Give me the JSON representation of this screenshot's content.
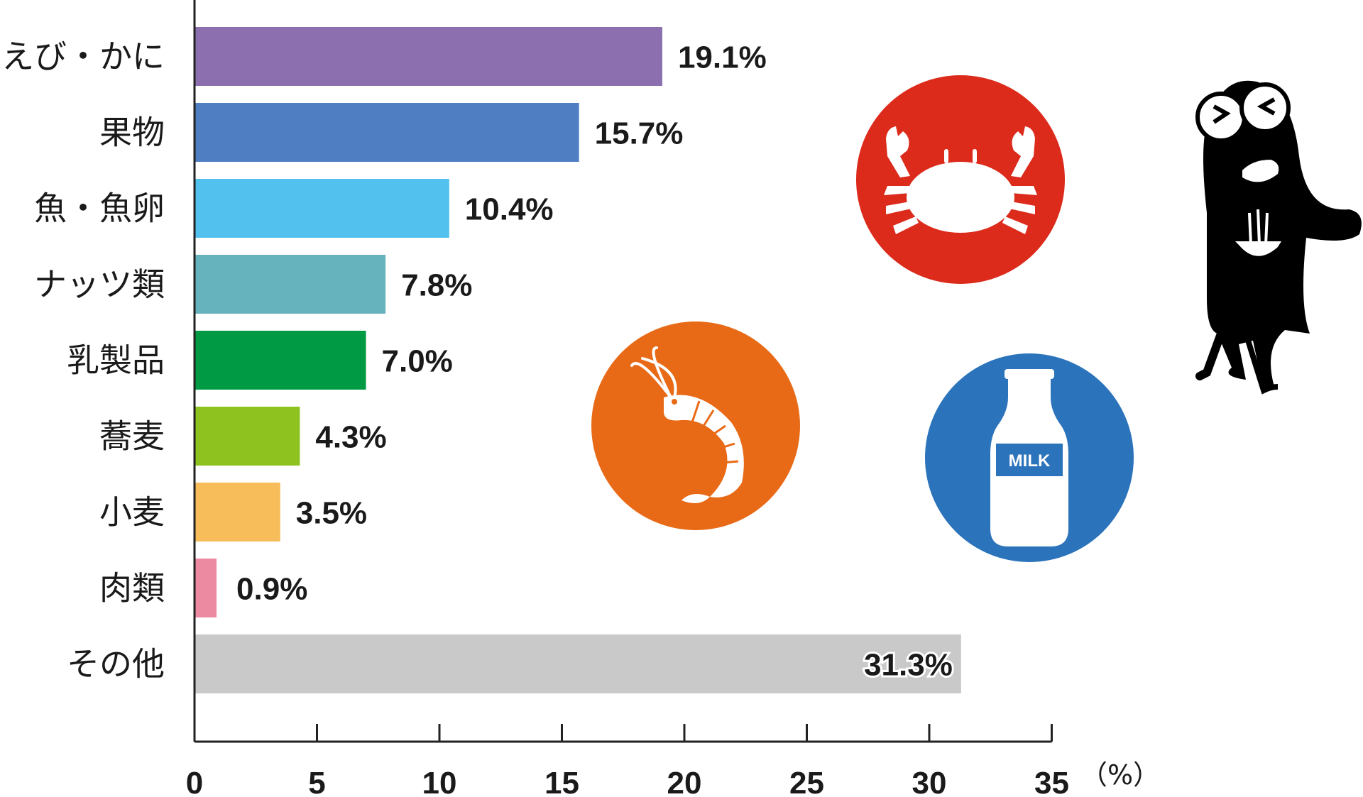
{
  "chart_data": {
    "type": "bar",
    "orientation": "horizontal",
    "categories": [
      "えび・かに",
      "果物",
      "魚・魚卵",
      "ナッツ類",
      "乳製品",
      "蕎麦",
      "小麦",
      "肉類",
      "その他"
    ],
    "values": [
      19.1,
      15.7,
      10.4,
      7.8,
      7.0,
      4.3,
      3.5,
      0.9,
      31.3
    ],
    "value_labels": [
      "19.1%",
      "15.7%",
      "10.4%",
      "7.8%",
      "7.0%",
      "4.3%",
      "3.5%",
      "0.9%",
      "31.3%"
    ],
    "colors": [
      "#8c6fae",
      "#4f7fc2",
      "#52c1ee",
      "#67b3bd",
      "#009a44",
      "#8dc21f",
      "#f6bd5a",
      "#ec8aa2",
      "#c9c9c9"
    ],
    "xlim": [
      0,
      35
    ],
    "x_ticks": [
      0,
      5,
      10,
      15,
      20,
      25,
      30,
      35
    ],
    "x_tick_labels": [
      "0",
      "5",
      "10",
      "15",
      "20",
      "25",
      "30",
      "35"
    ],
    "x_unit": "（%）",
    "grid": false,
    "legend": "none"
  },
  "illustrations": {
    "crab_circle_color": "#dc2a1b",
    "shrimp_circle_color": "#e86a17",
    "milk_circle_color": "#2b73bb",
    "milk_label": "MILK",
    "mascot_color": "#000000"
  }
}
